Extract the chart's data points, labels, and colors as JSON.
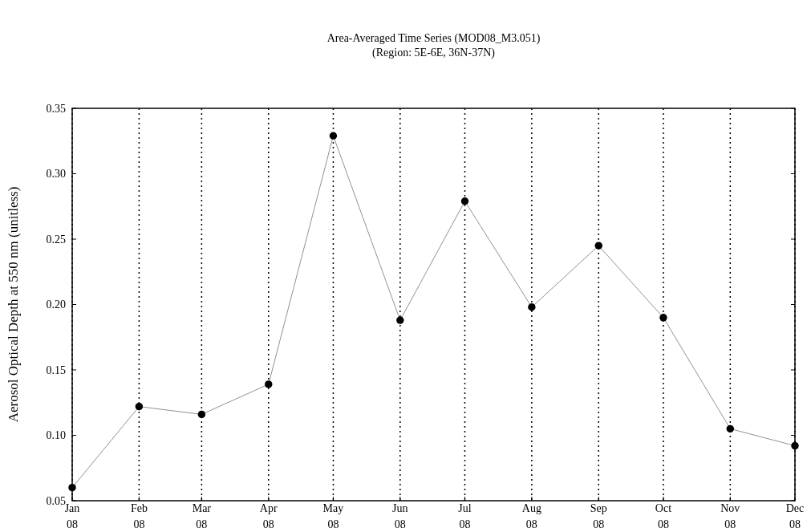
{
  "chart_data": {
    "type": "line",
    "title": "Area-Averaged Time Series (MOD08_M3.051)",
    "subtitle": "(Region: 5E-6E, 36N-37N)",
    "ylabel": "Aerosol Optical Depth at 550 nm (unitless)",
    "x": [
      "2008-01",
      "2008-02",
      "2008-03",
      "2008-04",
      "2008-05",
      "2008-06",
      "2008-07",
      "2008-08",
      "2008-09",
      "2008-10",
      "2008-11",
      "2008-12"
    ],
    "values": [
      0.06,
      0.122,
      0.116,
      0.139,
      0.329,
      0.188,
      0.279,
      0.198,
      0.245,
      0.19,
      0.105,
      0.092
    ],
    "color": "#000000",
    "marker": "circle",
    "line_style": "solid",
    "grid": "x",
    "xlim": [
      "2008-01",
      "2008-12"
    ],
    "xticks": [
      {
        "value": "2008-01",
        "label": "Jan 08"
      },
      {
        "value": "2008-02",
        "label": "Feb 08"
      },
      {
        "value": "2008-03",
        "label": "Mar 08"
      },
      {
        "value": "2008-04",
        "label": "Apr 08"
      },
      {
        "value": "2008-05",
        "label": "May 08"
      },
      {
        "value": "2008-06",
        "label": "Jun 08"
      },
      {
        "value": "2008-07",
        "label": "Jul 08"
      },
      {
        "value": "2008-08",
        "label": "Aug 08"
      },
      {
        "value": "2008-09",
        "label": "Sep 08"
      },
      {
        "value": "2008-10",
        "label": "Oct 08"
      },
      {
        "value": "2008-11",
        "label": "Nov 08"
      },
      {
        "value": "2008-12",
        "label": "Dec 08"
      }
    ],
    "ylim": [
      0.05,
      0.35
    ],
    "yticks": [
      0.05,
      {
        "value": 0.1,
        "label": "0.10"
      },
      0.15,
      {
        "value": 0.2,
        "label": "0.20"
      },
      0.25,
      {
        "value": 0.3,
        "label": "0.30"
      },
      0.35
    ]
  }
}
